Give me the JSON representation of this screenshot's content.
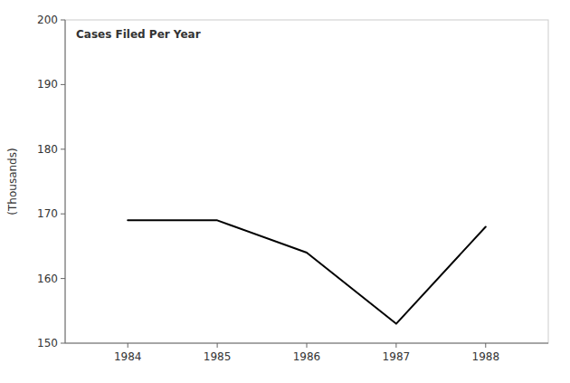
{
  "chart_data": {
    "type": "line",
    "x": [
      1984,
      1985,
      1986,
      1987,
      1988
    ],
    "values": [
      169,
      169,
      164,
      153,
      168
    ],
    "ylabel": "(Thousands)",
    "annotation": "Cases Filed Per Year",
    "color": "#000000",
    "xlim": [
      1983.3,
      1988.7
    ],
    "ylim": [
      150,
      200
    ],
    "xticks": [
      1984,
      1985,
      1986,
      1987,
      1988
    ],
    "yticks": [
      150,
      160,
      170,
      180,
      190,
      200
    ],
    "grid": false
  }
}
